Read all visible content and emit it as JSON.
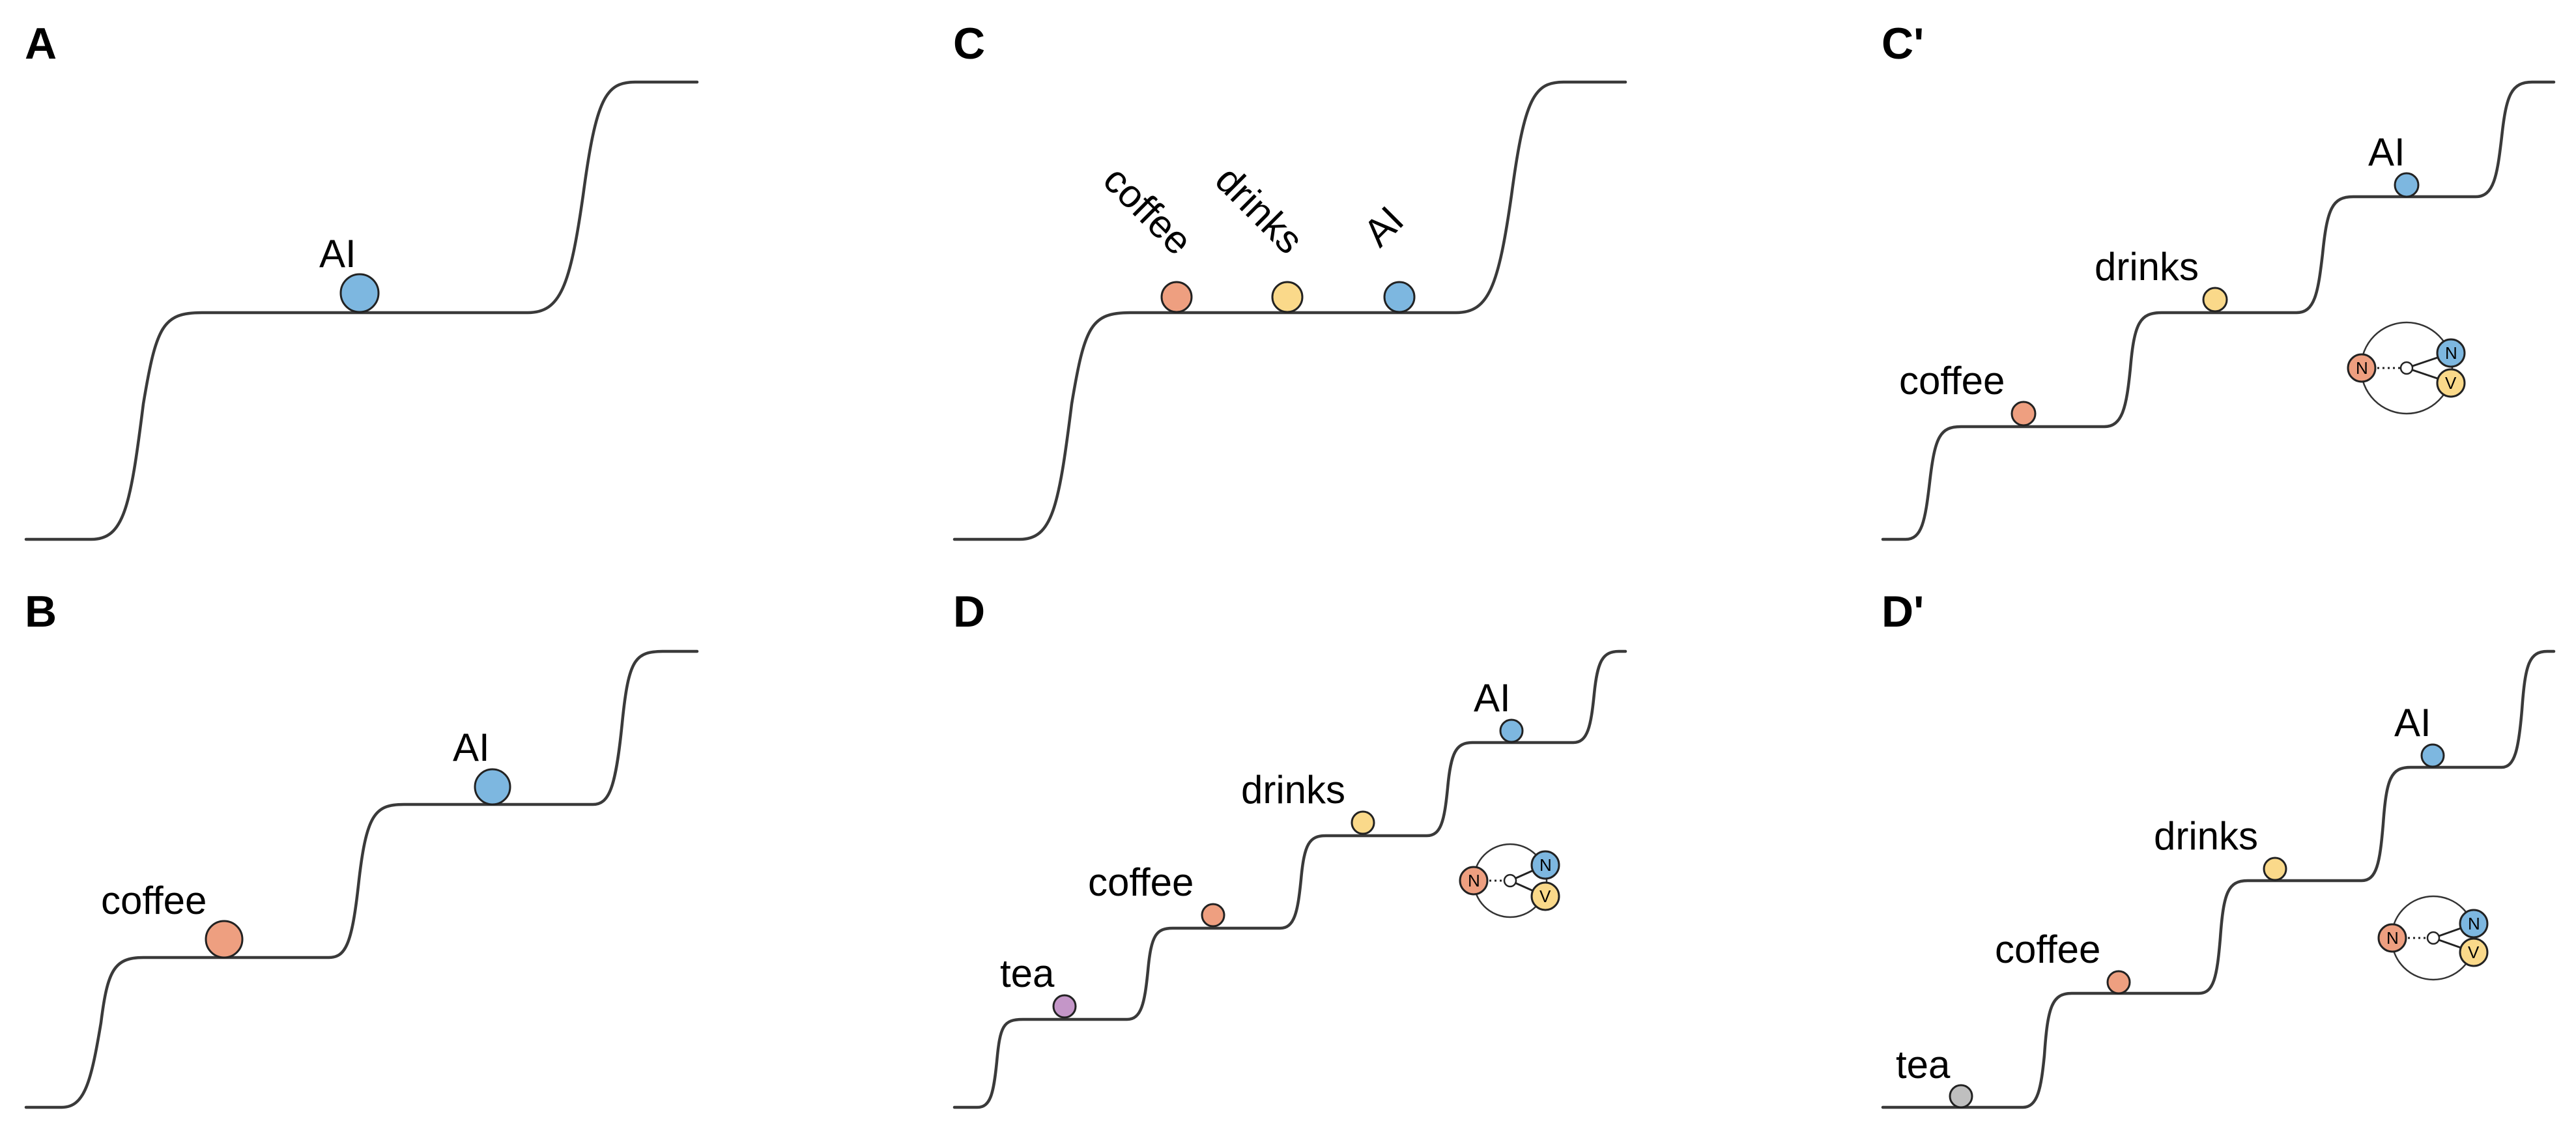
{
  "colors": {
    "blue": "#7db7e0",
    "orange": "#ee9f80",
    "yellow": "#fad98a",
    "purple": "#c496c8",
    "gray": "#bfbfbf",
    "line": "#3a3a3a"
  },
  "panels": [
    {
      "id": "A",
      "label": "A",
      "words": [
        {
          "text": "AI",
          "color": "blue",
          "step": 1
        }
      ],
      "graph": null
    },
    {
      "id": "B",
      "label": "B",
      "words": [
        {
          "text": "coffee",
          "color": "orange",
          "step": 1
        },
        {
          "text": "AI",
          "color": "blue",
          "step": 2
        }
      ],
      "graph": null
    },
    {
      "id": "C",
      "label": "C",
      "words": [
        {
          "text": "coffee",
          "color": "orange",
          "step": 1
        },
        {
          "text": "drinks",
          "color": "yellow",
          "step": 1
        },
        {
          "text": "AI",
          "color": "blue",
          "step": 1
        }
      ],
      "graph": null
    },
    {
      "id": "D",
      "label": "D",
      "words": [
        {
          "text": "tea",
          "color": "purple",
          "step": 1
        },
        {
          "text": "coffee",
          "color": "orange",
          "step": 2
        },
        {
          "text": "drinks",
          "color": "yellow",
          "step": 3
        },
        {
          "text": "AI",
          "color": "blue",
          "step": 4
        }
      ],
      "graph": {
        "left": "N",
        "top_right": "N",
        "bottom_right": "V"
      }
    },
    {
      "id": "Cp",
      "label": "C'",
      "words": [
        {
          "text": "coffee",
          "color": "orange",
          "step": 1
        },
        {
          "text": "drinks",
          "color": "yellow",
          "step": 2
        },
        {
          "text": "AI",
          "color": "blue",
          "step": 3
        }
      ],
      "graph": {
        "left": "N",
        "top_right": "N",
        "bottom_right": "V"
      }
    },
    {
      "id": "Dp",
      "label": "D'",
      "words": [
        {
          "text": "tea",
          "color": "gray",
          "step": 0
        },
        {
          "text": "coffee",
          "color": "orange",
          "step": 1
        },
        {
          "text": "drinks",
          "color": "yellow",
          "step": 2
        },
        {
          "text": "AI",
          "color": "blue",
          "step": 3
        }
      ],
      "graph": {
        "left": "N",
        "top_right": "N",
        "bottom_right": "V"
      }
    }
  ]
}
